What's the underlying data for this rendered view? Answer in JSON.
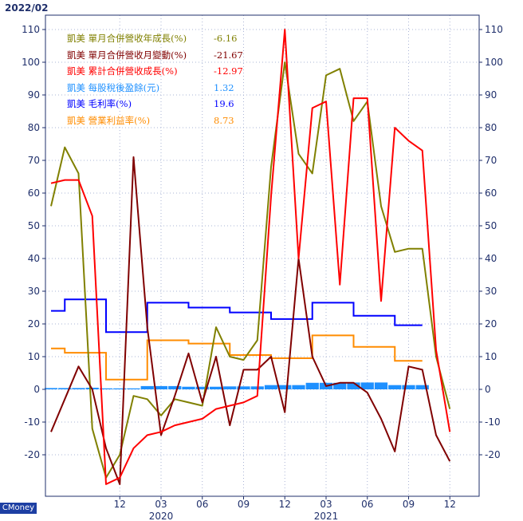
{
  "header": {
    "date": "2022/02",
    "watermark": "CMoney"
  },
  "colors": {
    "olive": "#808000",
    "maroon": "#800000",
    "red": "#ff0000",
    "lightblue": "#1e90ff",
    "blue": "#0000ff",
    "orange": "#ff8c00",
    "axis": "#1f2f6b",
    "grid": "#aab4d6"
  },
  "chart_data": {
    "type": "line",
    "title": "",
    "ylim": [
      -30,
      110
    ],
    "yticks_left": [
      "110",
      "100",
      "90",
      "80",
      "70",
      "60",
      "50",
      "40",
      "30",
      "20",
      "10",
      "0",
      "-10",
      "-20"
    ],
    "yticks_right": [
      "110",
      "100",
      "90",
      "80",
      "70",
      "60",
      "50",
      "40",
      "30",
      "20",
      "10",
      "0",
      "-10",
      "-20"
    ],
    "ytick_values": [
      110,
      100,
      90,
      80,
      70,
      60,
      50,
      40,
      30,
      20,
      10,
      0,
      -10,
      -20
    ],
    "xticks": [
      {
        "index": 5,
        "label": "12"
      },
      {
        "index": 8,
        "label": "03"
      },
      {
        "index": 11,
        "label": "06"
      },
      {
        "index": 14,
        "label": "09"
      },
      {
        "index": 17,
        "label": "12"
      },
      {
        "index": 20,
        "label": "03"
      },
      {
        "index": 23,
        "label": "06"
      },
      {
        "index": 26,
        "label": "09"
      },
      {
        "index": 29,
        "label": "12"
      }
    ],
    "year_labels": [
      {
        "index": 8,
        "label": "2020"
      },
      {
        "index": 20,
        "label": "2021"
      }
    ],
    "grid": true,
    "legend_position": "top-left",
    "legend": [
      {
        "company": "凱美",
        "name": "單月合併營收年成長(%)",
        "value": "-6.16",
        "color": "#808000"
      },
      {
        "company": "凱美",
        "name": "單月合併營收月變動(%)",
        "value": "-21.67",
        "color": "#800000"
      },
      {
        "company": "凱美",
        "name": "累計合併營收成長(%)",
        "value": "-12.97",
        "color": "#ff0000"
      },
      {
        "company": "凱美",
        "name": "每股稅後盈餘(元)",
        "value": "1.32",
        "color": "#1e90ff"
      },
      {
        "company": "凱美",
        "name": "毛利率(%)",
        "value": "19.6",
        "color": "#0000ff"
      },
      {
        "company": "凱美",
        "name": "營業利益率(%)",
        "value": "8.73",
        "color": "#ff8c00"
      }
    ],
    "series": [
      {
        "name": "單月合併營收年成長(%)",
        "kind": "line",
        "color": "#808000",
        "width": 2,
        "values": [
          56,
          74,
          66,
          -12,
          -27,
          -20,
          -2,
          -3,
          -8,
          -3,
          -4,
          -5,
          19,
          10,
          9,
          15,
          68,
          100,
          72,
          66,
          96,
          98,
          82,
          88,
          56,
          42,
          43,
          43,
          10,
          -6
        ]
      },
      {
        "name": "單月合併營收月變動(%)",
        "kind": "line",
        "color": "#800000",
        "width": 2,
        "values": [
          -13,
          -3,
          7,
          0,
          -18,
          -29,
          71,
          19,
          -14,
          -2,
          11,
          -4,
          10,
          -11,
          6,
          6,
          10,
          -7,
          40,
          10,
          1,
          2,
          2,
          -1,
          -9,
          -19,
          7,
          6,
          -14,
          -22
        ]
      },
      {
        "name": "累計合併營收成長(%)",
        "kind": "line",
        "color": "#ff0000",
        "width": 2,
        "values": [
          63,
          64,
          64,
          53,
          -29,
          -27,
          -18,
          -14,
          -13,
          -11,
          -10,
          -9,
          -6,
          -5,
          -4,
          -2,
          59,
          110,
          40,
          86,
          88,
          32,
          89,
          89,
          27,
          80,
          76,
          73,
          12,
          -13
        ]
      },
      {
        "name": "每股稅後盈餘(元)",
        "kind": "bar",
        "color": "#1e90ff",
        "values": [
          0.4,
          0.4,
          0.4,
          0.5,
          0.3,
          0.3,
          0.3,
          1.0,
          1.0,
          1.0,
          0.8,
          0.8,
          0.8,
          0.9,
          0.9,
          0.9,
          1.3,
          1.3,
          1.3,
          2.0,
          2.0,
          2.0,
          2.1,
          2.1,
          2.1,
          1.3,
          1.3,
          1.3
        ]
      },
      {
        "name": "毛利率(%)",
        "kind": "step",
        "color": "#0000ff",
        "width": 2,
        "values": [
          24,
          27.5,
          27.5,
          27.5,
          17.5,
          17.5,
          17.5,
          26.5,
          26.5,
          26.5,
          25,
          25,
          25,
          23.5,
          23.5,
          23.5,
          21.5,
          21.5,
          21.5,
          26.5,
          26.5,
          26.5,
          22.5,
          22.5,
          22.5,
          19.6,
          19.6,
          19.6
        ]
      },
      {
        "name": "營業利益率(%)",
        "kind": "step",
        "color": "#ff8c00",
        "width": 2,
        "values": [
          12.5,
          11.2,
          11.2,
          11.2,
          3,
          3,
          3,
          15,
          15,
          15,
          14,
          14,
          14,
          10.5,
          10.5,
          10.5,
          9.5,
          9.5,
          9.5,
          16.5,
          16.5,
          16.5,
          13,
          13,
          13,
          8.73,
          8.73,
          8.73
        ]
      }
    ]
  }
}
